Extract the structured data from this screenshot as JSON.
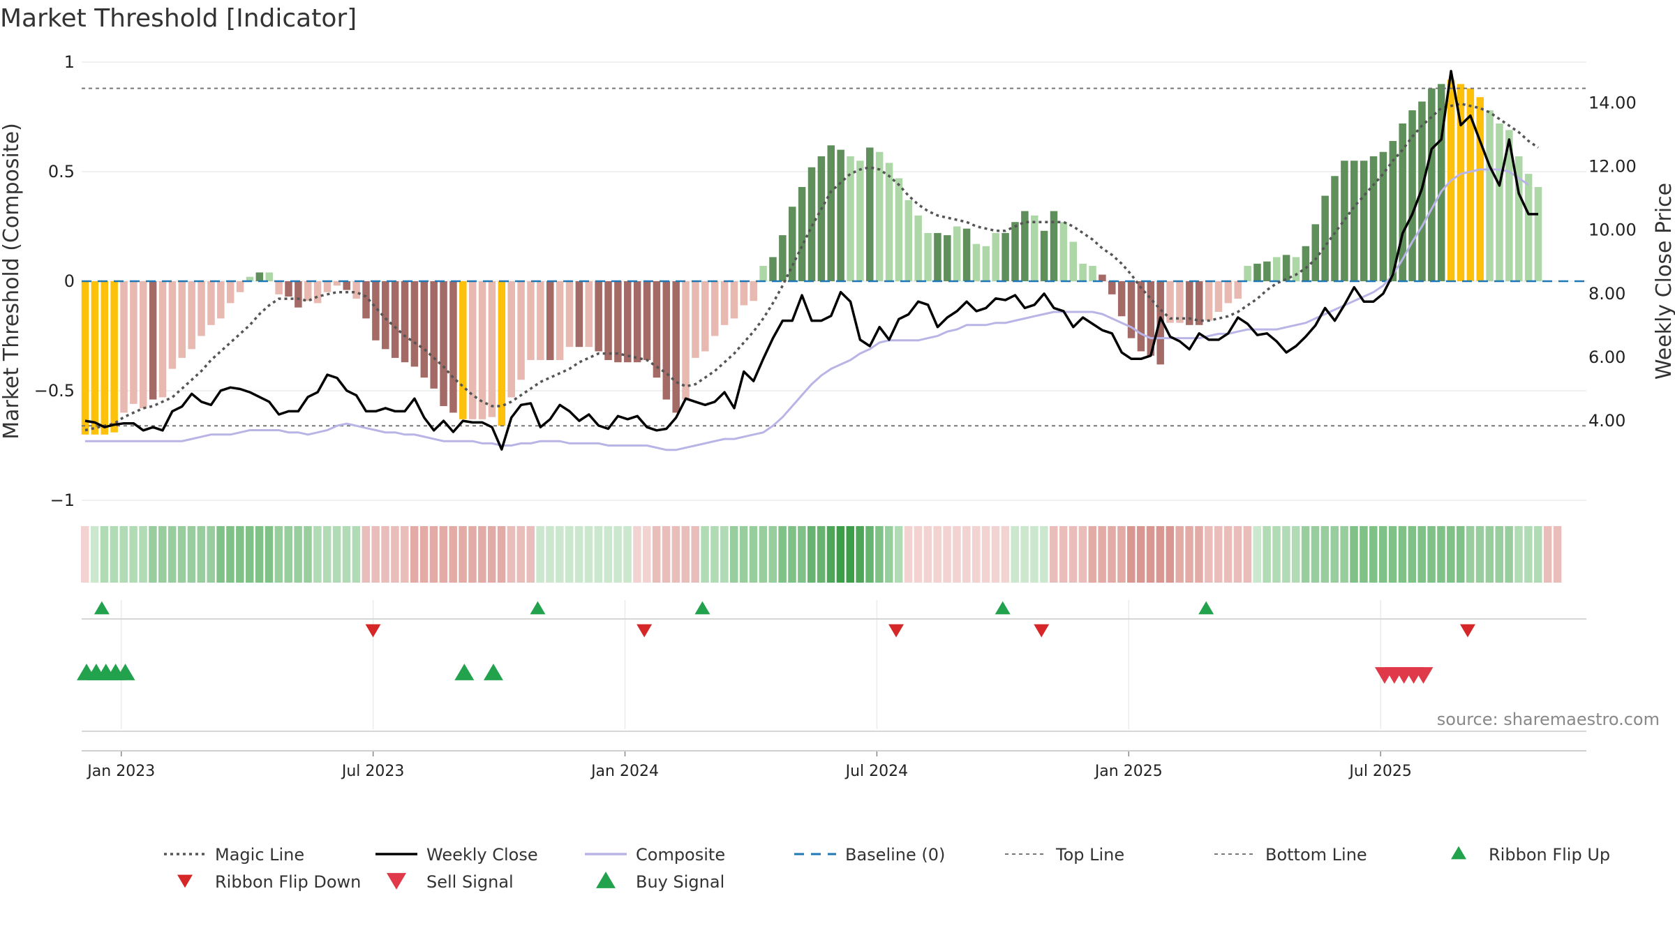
{
  "chart_data": {
    "type": "bar",
    "title": "Market Threshold [Indicator]",
    "ylabel_left": "Market Threshold (Composite)",
    "ylabel_right": "Weekly Close Price",
    "source": "source: sharemaestro.com",
    "left_axis": {
      "range": [
        -1,
        1
      ],
      "ticks": [
        1,
        0.5,
        0,
        -0.5,
        -1
      ],
      "tick_labels": [
        "1",
        "0.5",
        "0",
        "−0.5",
        "−1"
      ]
    },
    "right_axis": {
      "range": [
        1.5,
        15.92
      ],
      "ticks": [
        14,
        12,
        10,
        8,
        6,
        4
      ],
      "tick_labels": [
        "14.00",
        "12.00",
        "10.00",
        "8.00",
        "6.00",
        "4.00"
      ]
    },
    "date_axis": {
      "tick_labels": [
        "Jan 2023",
        "Jul 2023",
        "Jan 2024",
        "Jul 2024",
        "Jan 2025",
        "Jul 2025"
      ],
      "tick_weeks": [
        2,
        28,
        54,
        80,
        106,
        132
      ]
    },
    "top_line": 0.88,
    "bottom_line": -0.66,
    "baseline": 0,
    "composite_bars": [
      -0.7,
      -0.7,
      -0.7,
      -0.69,
      -0.6,
      -0.56,
      -0.58,
      -0.54,
      -0.53,
      -0.4,
      -0.35,
      -0.31,
      -0.25,
      -0.2,
      -0.17,
      -0.1,
      -0.05,
      0.02,
      0.04,
      0.04,
      -0.06,
      -0.07,
      -0.12,
      -0.09,
      -0.1,
      -0.05,
      -0.02,
      -0.04,
      -0.08,
      -0.17,
      -0.27,
      -0.31,
      -0.35,
      -0.37,
      -0.39,
      -0.44,
      -0.49,
      -0.57,
      -0.6,
      -0.63,
      -0.63,
      -0.63,
      -0.62,
      -0.66,
      -0.53,
      -0.45,
      -0.36,
      -0.36,
      -0.36,
      -0.36,
      -0.3,
      -0.3,
      -0.3,
      -0.32,
      -0.36,
      -0.37,
      -0.37,
      -0.37,
      -0.36,
      -0.44,
      -0.54,
      -0.6,
      -0.54,
      -0.35,
      -0.32,
      -0.25,
      -0.2,
      -0.17,
      -0.11,
      -0.09,
      0.07,
      0.11,
      0.21,
      0.34,
      0.43,
      0.52,
      0.57,
      0.62,
      0.6,
      0.57,
      0.55,
      0.61,
      0.59,
      0.54,
      0.47,
      0.37,
      0.3,
      0.22,
      0.22,
      0.21,
      0.25,
      0.24,
      0.17,
      0.16,
      0.22,
      0.22,
      0.27,
      0.32,
      0.3,
      0.23,
      0.32,
      0.27,
      0.18,
      0.08,
      0.07,
      0.03,
      -0.06,
      -0.16,
      -0.26,
      -0.32,
      -0.34,
      -0.38,
      -0.19,
      -0.19,
      -0.2,
      -0.2,
      -0.18,
      -0.14,
      -0.1,
      -0.08,
      0.07,
      0.08,
      0.09,
      0.11,
      0.12,
      0.11,
      0.16,
      0.26,
      0.39,
      0.48,
      0.55,
      0.55,
      0.55,
      0.57,
      0.59,
      0.64,
      0.72,
      0.78,
      0.82,
      0.88,
      0.9,
      0.92,
      0.9,
      0.88,
      0.84,
      0.78,
      0.72,
      0.69,
      0.57,
      0.49,
      0.43
    ],
    "bar_colors": [
      "#fdc10c",
      "#fdc10c",
      "#fdc10c",
      "#fdc10c",
      "#e8b9b0",
      "#e8b9b0",
      "#e8b9b0",
      "#a46a65",
      "#e8b9b0",
      "#e8b9b0",
      "#e8b9b0",
      "#e8b9b0",
      "#e8b9b0",
      "#e8b9b0",
      "#e8b9b0",
      "#e8b9b0",
      "#e8b9b0",
      "#aed7a8",
      "#5f8f5a",
      "#aed7a8",
      "#e8b9b0",
      "#a46a65",
      "#a46a65",
      "#e8b9b0",
      "#e8b9b0",
      "#e8b9b0",
      "#e8b9b0",
      "#a46a65",
      "#e8b9b0",
      "#a46a65",
      "#a46a65",
      "#a46a65",
      "#a46a65",
      "#a46a65",
      "#a46a65",
      "#a46a65",
      "#a46a65",
      "#a46a65",
      "#a46a65",
      "#fdc10c",
      "#e8b9b0",
      "#e8b9b0",
      "#e8b9b0",
      "#fdc10c",
      "#e8b9b0",
      "#e8b9b0",
      "#e8b9b0",
      "#e8b9b0",
      "#a46a65",
      "#e8b9b0",
      "#e8b9b0",
      "#a46a65",
      "#e8b9b0",
      "#a46a65",
      "#a46a65",
      "#a46a65",
      "#a46a65",
      "#a46a65",
      "#a46a65",
      "#a46a65",
      "#a46a65",
      "#a46a65",
      "#e8b9b0",
      "#e8b9b0",
      "#e8b9b0",
      "#e8b9b0",
      "#e8b9b0",
      "#e8b9b0",
      "#e8b9b0",
      "#e8b9b0",
      "#aed7a8",
      "#5f8f5a",
      "#5f8f5a",
      "#5f8f5a",
      "#5f8f5a",
      "#5f8f5a",
      "#5f8f5a",
      "#5f8f5a",
      "#5f8f5a",
      "#aed7a8",
      "#aed7a8",
      "#5f8f5a",
      "#aed7a8",
      "#aed7a8",
      "#aed7a8",
      "#aed7a8",
      "#aed7a8",
      "#aed7a8",
      "#5f8f5a",
      "#5f8f5a",
      "#aed7a8",
      "#5f8f5a",
      "#aed7a8",
      "#aed7a8",
      "#aed7a8",
      "#5f8f5a",
      "#5f8f5a",
      "#5f8f5a",
      "#aed7a8",
      "#5f8f5a",
      "#5f8f5a",
      "#aed7a8",
      "#aed7a8",
      "#aed7a8",
      "#aed7a8",
      "#a46a65",
      "#a46a65",
      "#a46a65",
      "#a46a65",
      "#a46a65",
      "#a46a65",
      "#a46a65",
      "#e8b9b0",
      "#e8b9b0",
      "#a46a65",
      "#a46a65",
      "#e8b9b0",
      "#e8b9b0",
      "#e8b9b0",
      "#e8b9b0",
      "#aed7a8",
      "#5f8f5a",
      "#5f8f5a",
      "#aed7a8",
      "#5f8f5a",
      "#aed7a8",
      "#5f8f5a",
      "#5f8f5a",
      "#5f8f5a",
      "#5f8f5a",
      "#5f8f5a",
      "#5f8f5a",
      "#5f8f5a",
      "#5f8f5a",
      "#5f8f5a",
      "#5f8f5a",
      "#5f8f5a",
      "#5f8f5a",
      "#5f8f5a",
      "#5f8f5a",
      "#5f8f5a",
      "#fdc10c",
      "#fdc10c",
      "#fdc10c",
      "#fdc10c",
      "#aed7a8",
      "#aed7a8",
      "#aed7a8",
      "#aed7a8",
      "#aed7a8",
      "#aed7a8",
      "#aed7a8",
      "#aed7a8"
    ],
    "magic_line": [
      -0.68,
      -0.67,
      -0.66,
      -0.65,
      -0.62,
      -0.6,
      -0.58,
      -0.57,
      -0.55,
      -0.53,
      -0.49,
      -0.45,
      -0.41,
      -0.36,
      -0.32,
      -0.28,
      -0.24,
      -0.2,
      -0.15,
      -0.11,
      -0.08,
      -0.08,
      -0.08,
      -0.09,
      -0.07,
      -0.06,
      -0.05,
      -0.05,
      -0.05,
      -0.07,
      -0.12,
      -0.17,
      -0.21,
      -0.25,
      -0.28,
      -0.31,
      -0.35,
      -0.39,
      -0.44,
      -0.48,
      -0.52,
      -0.55,
      -0.57,
      -0.57,
      -0.55,
      -0.52,
      -0.49,
      -0.46,
      -0.44,
      -0.42,
      -0.4,
      -0.37,
      -0.35,
      -0.33,
      -0.33,
      -0.33,
      -0.34,
      -0.35,
      -0.36,
      -0.39,
      -0.42,
      -0.46,
      -0.48,
      -0.47,
      -0.44,
      -0.41,
      -0.37,
      -0.33,
      -0.28,
      -0.23,
      -0.17,
      -0.1,
      -0.02,
      0.07,
      0.16,
      0.25,
      0.33,
      0.41,
      0.45,
      0.49,
      0.51,
      0.52,
      0.51,
      0.48,
      0.44,
      0.39,
      0.35,
      0.32,
      0.3,
      0.29,
      0.28,
      0.27,
      0.25,
      0.24,
      0.23,
      0.23,
      0.25,
      0.27,
      0.27,
      0.27,
      0.27,
      0.27,
      0.25,
      0.22,
      0.19,
      0.15,
      0.12,
      0.08,
      0.03,
      -0.03,
      -0.08,
      -0.13,
      -0.17,
      -0.17,
      -0.17,
      -0.18,
      -0.18,
      -0.17,
      -0.16,
      -0.14,
      -0.11,
      -0.08,
      -0.04,
      -0.01,
      0.01,
      0.03,
      0.06,
      0.1,
      0.16,
      0.22,
      0.28,
      0.34,
      0.39,
      0.44,
      0.49,
      0.55,
      0.6,
      0.66,
      0.71,
      0.75,
      0.79,
      0.8,
      0.81,
      0.8,
      0.79,
      0.77,
      0.74,
      0.71,
      0.68,
      0.64,
      0.61
    ],
    "weekly_close": [
      4.0,
      3.95,
      3.8,
      3.88,
      3.92,
      3.92,
      3.7,
      3.8,
      3.7,
      4.3,
      4.45,
      4.85,
      4.6,
      4.5,
      4.95,
      5.05,
      5.0,
      4.9,
      4.75,
      4.6,
      4.2,
      4.3,
      4.3,
      4.75,
      4.9,
      5.45,
      5.35,
      4.95,
      4.8,
      4.3,
      4.3,
      4.4,
      4.3,
      4.3,
      4.7,
      4.1,
      3.7,
      4.0,
      3.65,
      4.0,
      3.95,
      3.95,
      3.8,
      3.1,
      4.1,
      4.5,
      4.55,
      3.8,
      4.05,
      4.5,
      4.3,
      4.0,
      4.2,
      3.85,
      3.75,
      4.15,
      4.05,
      4.15,
      3.8,
      3.7,
      3.75,
      4.1,
      4.7,
      4.6,
      4.5,
      4.6,
      4.9,
      4.4,
      5.55,
      5.25,
      5.95,
      6.6,
      7.15,
      7.15,
      7.95,
      7.15,
      7.15,
      7.3,
      8.05,
      7.75,
      6.55,
      6.35,
      6.95,
      6.55,
      7.2,
      7.35,
      7.75,
      7.65,
      6.95,
      7.25,
      7.45,
      7.75,
      7.45,
      7.55,
      7.85,
      7.8,
      7.95,
      7.55,
      7.65,
      8.0,
      7.55,
      7.45,
      6.95,
      7.25,
      7.05,
      6.85,
      6.75,
      6.15,
      5.95,
      5.95,
      6.05,
      7.25,
      6.65,
      6.5,
      6.25,
      6.75,
      6.55,
      6.55,
      6.75,
      7.25,
      7.05,
      6.7,
      6.75,
      6.5,
      6.15,
      6.35,
      6.65,
      7.0,
      7.55,
      7.15,
      7.65,
      8.2,
      7.75,
      7.75,
      8.0,
      8.6,
      9.9,
      10.5,
      11.3,
      12.55,
      12.85,
      15.0,
      13.3,
      13.6,
      12.8,
      12.0,
      11.4,
      12.85,
      11.15,
      10.5,
      10.5
    ],
    "composite_line": [
      -0.73,
      -0.73,
      -0.73,
      -0.73,
      -0.73,
      -0.73,
      -0.73,
      -0.73,
      -0.73,
      -0.73,
      -0.73,
      -0.72,
      -0.71,
      -0.7,
      -0.7,
      -0.7,
      -0.69,
      -0.68,
      -0.68,
      -0.68,
      -0.68,
      -0.69,
      -0.69,
      -0.7,
      -0.69,
      -0.68,
      -0.66,
      -0.65,
      -0.66,
      -0.67,
      -0.68,
      -0.69,
      -0.69,
      -0.7,
      -0.7,
      -0.71,
      -0.72,
      -0.73,
      -0.73,
      -0.73,
      -0.73,
      -0.74,
      -0.74,
      -0.75,
      -0.75,
      -0.74,
      -0.74,
      -0.73,
      -0.73,
      -0.73,
      -0.74,
      -0.74,
      -0.74,
      -0.74,
      -0.75,
      -0.75,
      -0.75,
      -0.75,
      -0.75,
      -0.76,
      -0.77,
      -0.77,
      -0.76,
      -0.75,
      -0.74,
      -0.73,
      -0.72,
      -0.72,
      -0.71,
      -0.7,
      -0.69,
      -0.66,
      -0.62,
      -0.57,
      -0.52,
      -0.47,
      -0.43,
      -0.4,
      -0.38,
      -0.36,
      -0.33,
      -0.31,
      -0.28,
      -0.27,
      -0.27,
      -0.27,
      -0.27,
      -0.26,
      -0.25,
      -0.23,
      -0.22,
      -0.2,
      -0.2,
      -0.2,
      -0.19,
      -0.19,
      -0.18,
      -0.17,
      -0.16,
      -0.15,
      -0.14,
      -0.14,
      -0.14,
      -0.14,
      -0.14,
      -0.15,
      -0.17,
      -0.19,
      -0.21,
      -0.24,
      -0.26,
      -0.26,
      -0.26,
      -0.26,
      -0.26,
      -0.26,
      -0.25,
      -0.24,
      -0.24,
      -0.23,
      -0.22,
      -0.22,
      -0.22,
      -0.22,
      -0.21,
      -0.2,
      -0.19,
      -0.17,
      -0.15,
      -0.13,
      -0.11,
      -0.09,
      -0.07,
      -0.05,
      -0.02,
      0.03,
      0.1,
      0.18,
      0.25,
      0.33,
      0.41,
      0.46,
      0.49,
      0.5,
      0.51,
      0.51,
      0.51,
      0.5,
      0.47,
      0.44
    ],
    "ribbon_colors": [
      "#f2d3d1",
      "#cbe7ce",
      "#b1dbb5",
      "#b1dbb5",
      "#b1dbb5",
      "#b1dbb5",
      "#b1dbb5",
      "#98ce9e",
      "#98ce9e",
      "#98ce9e",
      "#98ce9e",
      "#98ce9e",
      "#98ce9e",
      "#98ce9e",
      "#7fc186",
      "#7fc186",
      "#7fc186",
      "#7fc186",
      "#7fc186",
      "#7fc186",
      "#98ce9e",
      "#98ce9e",
      "#98ce9e",
      "#98ce9e",
      "#b1dbb5",
      "#b1dbb5",
      "#b1dbb5",
      "#b1dbb5",
      "#b1dbb5",
      "#e9beba",
      "#e9beba",
      "#e9beba",
      "#e9beba",
      "#e9beba",
      "#e2aba6",
      "#e2aba6",
      "#e2aba6",
      "#e2aba6",
      "#e2aba6",
      "#e2aba6",
      "#e2aba6",
      "#e2aba6",
      "#e2aba6",
      "#e2aba6",
      "#e9beba",
      "#e9beba",
      "#e9beba",
      "#cbe7ce",
      "#cbe7ce",
      "#cbe7ce",
      "#cbe7ce",
      "#cbe7ce",
      "#cbe7ce",
      "#cbe7ce",
      "#cbe7ce",
      "#cbe7ce",
      "#cbe7ce",
      "#f2d3d1",
      "#f2d3d1",
      "#e9beba",
      "#e9beba",
      "#e9beba",
      "#e9beba",
      "#e9beba",
      "#b1dbb5",
      "#b1dbb5",
      "#b1dbb5",
      "#98ce9e",
      "#98ce9e",
      "#98ce9e",
      "#98ce9e",
      "#98ce9e",
      "#7fc186",
      "#7fc186",
      "#7fc186",
      "#66b46f",
      "#66b46f",
      "#4ea759",
      "#3d9e49",
      "#3d9e49",
      "#4ea759",
      "#66b46f",
      "#7fc186",
      "#98ce9e",
      "#b1dbb5",
      "#f2d3d1",
      "#f2d3d1",
      "#f2d3d1",
      "#f2d3d1",
      "#f2d3d1",
      "#f2d3d1",
      "#f2d3d1",
      "#f2d3d1",
      "#f2d3d1",
      "#f2d3d1",
      "#f2d3d1",
      "#cbe7ce",
      "#cbe7ce",
      "#cbe7ce",
      "#cbe7ce",
      "#e9beba",
      "#e9beba",
      "#e9beba",
      "#e9beba",
      "#e2aba6",
      "#e2aba6",
      "#e2aba6",
      "#e2aba6",
      "#da9791",
      "#da9791",
      "#da9791",
      "#da9791",
      "#da9791",
      "#e2aba6",
      "#e2aba6",
      "#e2aba6",
      "#e9beba",
      "#e9beba",
      "#e9beba",
      "#e9beba",
      "#e9beba",
      "#cbe7ce",
      "#b1dbb5",
      "#b1dbb5",
      "#b1dbb5",
      "#b1dbb5",
      "#98ce9e",
      "#98ce9e",
      "#98ce9e",
      "#98ce9e",
      "#98ce9e",
      "#7fc186",
      "#7fc186",
      "#7fc186",
      "#7fc186",
      "#7fc186",
      "#7fc186",
      "#7fc186",
      "#7fc186",
      "#7fc186",
      "#7fc186",
      "#7fc186",
      "#7fc186",
      "#98ce9e",
      "#98ce9e",
      "#98ce9e",
      "#98ce9e",
      "#98ce9e",
      "#b1dbb5",
      "#b1dbb5",
      "#b1dbb5",
      "#e9beba",
      "#e9beba"
    ],
    "ribbon_flip_up_weeks": [
      1,
      46,
      63,
      94,
      115
    ],
    "ribbon_flip_down_weeks": [
      29,
      57,
      83,
      98,
      142
    ],
    "buy_signal_weeks": [
      0,
      1,
      2,
      3,
      4,
      39,
      42
    ],
    "sell_signal_weeks": [
      134,
      135,
      136,
      137,
      138
    ],
    "legend": [
      {
        "label": "Magic Line",
        "symbol": "dotted",
        "color": "#555555"
      },
      {
        "label": "Weekly Close",
        "symbol": "solid",
        "color": "#000000"
      },
      {
        "label": "Composite",
        "symbol": "solid",
        "color": "#b9b4e6"
      },
      {
        "label": "Baseline (0)",
        "symbol": "dashed",
        "color": "#1f77b4"
      },
      {
        "label": "Top Line",
        "symbol": "dotted-light",
        "color": "#777777"
      },
      {
        "label": "Bottom Line",
        "symbol": "dotted-light",
        "color": "#777777"
      },
      {
        "label": "Ribbon Flip Up",
        "symbol": "triangle-up",
        "color": "#23a24d"
      },
      {
        "label": "Ribbon Flip Down",
        "symbol": "triangle-down",
        "color": "#d62728"
      },
      {
        "label": "Sell Signal",
        "symbol": "triangle-down-large",
        "color": "#e0394a"
      },
      {
        "label": "Buy Signal",
        "symbol": "triangle-up-large",
        "color": "#23a24d"
      }
    ]
  }
}
